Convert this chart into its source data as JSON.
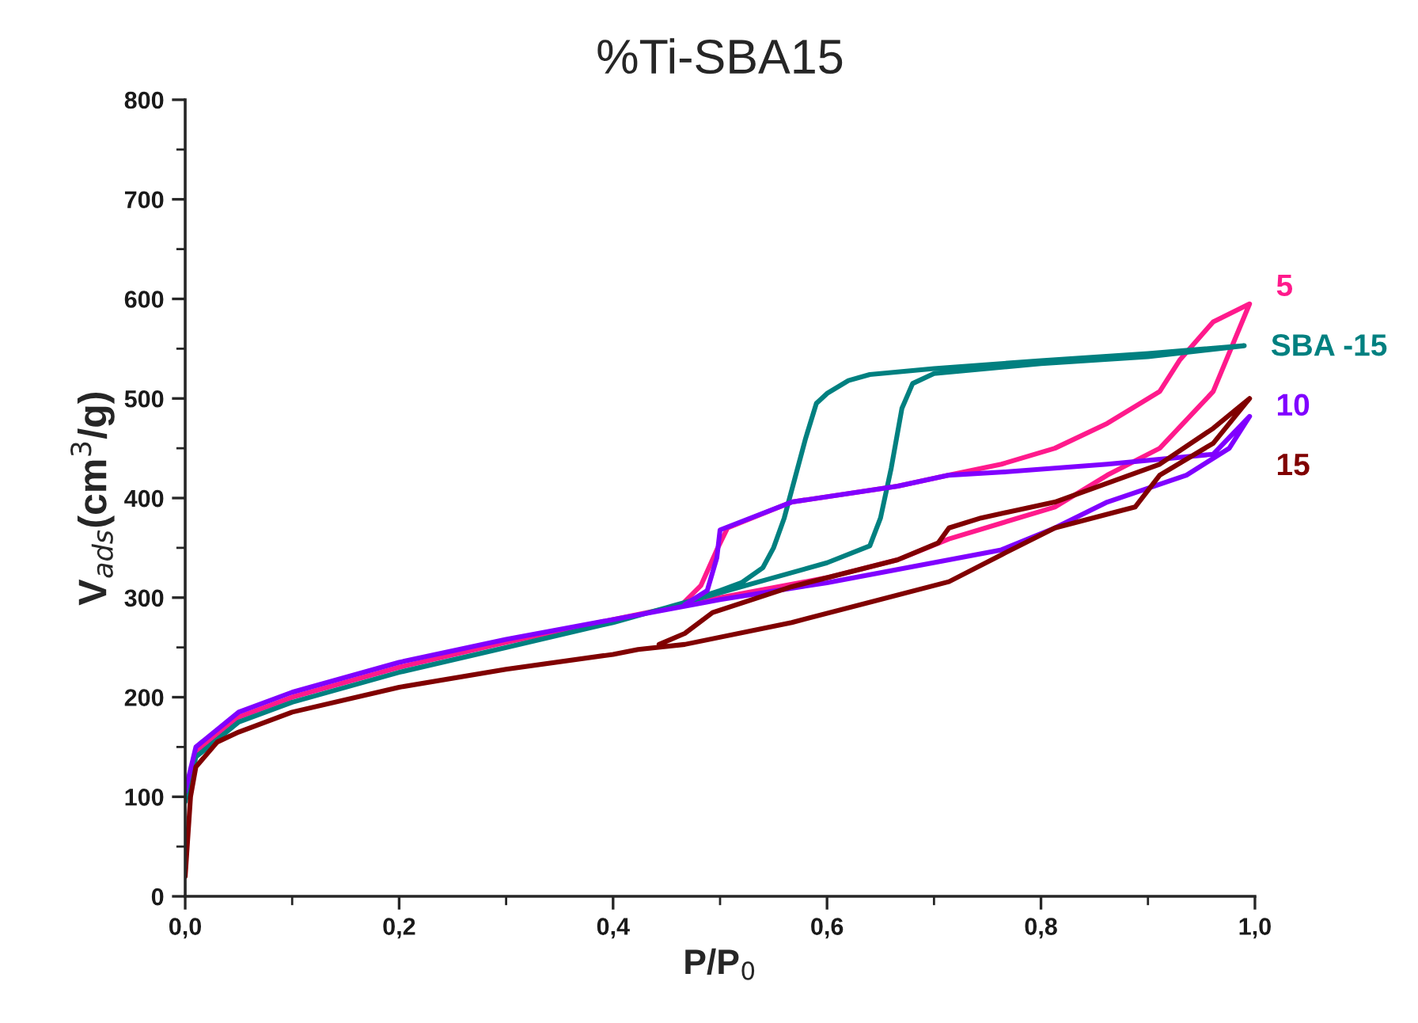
{
  "chart_data": {
    "type": "line",
    "title": "%Ti-SBA15",
    "xlabel": "P/P$_{0}$",
    "ylabel": "V$_{ads}$(cm$^{3}$/g)",
    "xlim": [
      0,
      1
    ],
    "ylim": [
      0,
      800
    ],
    "xticks": [
      {
        "value": 0,
        "label": "0,0"
      },
      {
        "value": 0.2,
        "label": "0,2"
      },
      {
        "value": 0.4,
        "label": "0,4"
      },
      {
        "value": 0.6,
        "label": "0,6"
      },
      {
        "value": 0.8,
        "label": "0,8"
      },
      {
        "value": 1,
        "label": "1,0"
      }
    ],
    "yticks": [
      0,
      100,
      200,
      300,
      400,
      500,
      600,
      700,
      800
    ],
    "grid": false,
    "legend": false,
    "marker": "none",
    "line_style": "solid",
    "series": [
      {
        "name": "5",
        "color": "#ff1a8c",
        "x": [
          0,
          0.01,
          0.05,
          0.1,
          0.2,
          0.3,
          0.4,
          0.5,
          0.6,
          0.666,
          0.714,
          0.813,
          0.862,
          0.911,
          0.961,
          0.995,
          0.961,
          0.93,
          0.911,
          0.862,
          0.813,
          0.763,
          0.714,
          0.666,
          0.567,
          0.507,
          0.497,
          0.482,
          0.467
        ],
        "values": [
          100,
          145,
          180,
          200,
          230,
          255,
          278,
          300,
          320,
          338,
          359,
          391,
          423,
          450,
          507,
          595,
          577,
          539,
          507,
          475,
          450,
          434,
          423,
          412,
          396,
          370,
          348,
          312,
          296
        ]
      },
      {
        "name": "SBA -15",
        "color": "#008080",
        "x": [
          0,
          0.01,
          0.05,
          0.1,
          0.2,
          0.3,
          0.4,
          0.45,
          0.5,
          0.55,
          0.6,
          0.64,
          0.65,
          0.66,
          0.67,
          0.68,
          0.7,
          0.8,
          0.9,
          0.99,
          0.9,
          0.8,
          0.7,
          0.64,
          0.62,
          0.6,
          0.59,
          0.58,
          0.57,
          0.56,
          0.55,
          0.54,
          0.52,
          0.5,
          0.48
        ],
        "values": [
          95,
          140,
          175,
          195,
          225,
          250,
          275,
          290,
          305,
          320,
          335,
          352,
          380,
          430,
          490,
          515,
          525,
          535,
          542,
          553,
          545,
          538,
          530,
          524,
          518,
          505,
          495,
          460,
          420,
          380,
          350,
          330,
          315,
          307,
          300
        ]
      },
      {
        "name": "10",
        "color": "#8000ff",
        "x": [
          0,
          0.01,
          0.05,
          0.1,
          0.2,
          0.3,
          0.4,
          0.5,
          0.6,
          0.714,
          0.763,
          0.813,
          0.862,
          0.936,
          0.976,
          0.995,
          0.961,
          0.862,
          0.763,
          0.714,
          0.666,
          0.567,
          0.5,
          0.497,
          0.488,
          0.467
        ],
        "values": [
          105,
          150,
          185,
          205,
          235,
          258,
          278,
          298,
          315,
          338,
          348,
          370,
          396,
          423,
          450,
          482,
          444,
          434,
          426,
          423,
          412,
          396,
          368,
          340,
          307,
          293
        ]
      },
      {
        "name": "15",
        "color": "#800000",
        "x": [
          0,
          0.005,
          0.01,
          0.03,
          0.05,
          0.1,
          0.2,
          0.3,
          0.4,
          0.4234,
          0.467,
          0.567,
          0.714,
          0.763,
          0.813,
          0.888,
          0.911,
          0.961,
          0.995,
          0.961,
          0.911,
          0.813,
          0.744,
          0.714,
          0.704,
          0.666,
          0.567,
          0.493,
          0.467,
          0.443
        ],
        "values": [
          20,
          100,
          130,
          155,
          165,
          185,
          210,
          228,
          243,
          248,
          253,
          275,
          316,
          343,
          370,
          391,
          423,
          455,
          500,
          470,
          434,
          396,
          380,
          370,
          355,
          338,
          311,
          285,
          264,
          253
        ]
      }
    ]
  }
}
